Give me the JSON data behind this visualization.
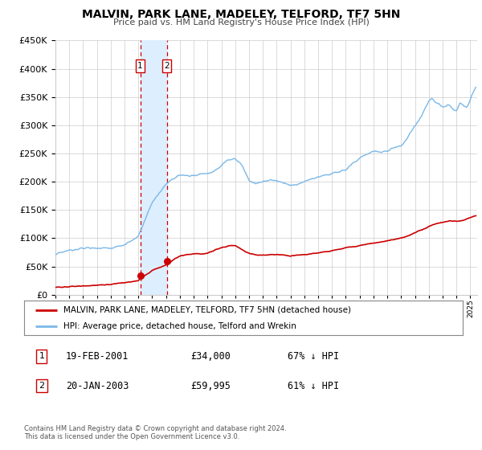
{
  "title": "MALVIN, PARK LANE, MADELEY, TELFORD, TF7 5HN",
  "subtitle": "Price paid vs. HM Land Registry's House Price Index (HPI)",
  "hpi_label": "HPI: Average price, detached house, Telford and Wrekin",
  "price_label": "MALVIN, PARK LANE, MADELEY, TELFORD, TF7 5HN (detached house)",
  "hpi_color": "#7ab8e8",
  "price_color": "#cc0000",
  "dot_color": "#cc0000",
  "marker1_date_num": 2001.13,
  "marker2_date_num": 2003.05,
  "marker1_price": 34000,
  "marker2_price": 59995,
  "ylim": [
    0,
    450000
  ],
  "xlim_min": 1995.0,
  "xlim_max": 2025.5,
  "footnote1": "Contains HM Land Registry data © Crown copyright and database right 2024.",
  "footnote2": "This data is licensed under the Open Government Licence v3.0.",
  "shade_color": "#ddeeff",
  "grid_color": "#cccccc",
  "bg_color": "#ffffff",
  "hpi_anchors_x": [
    1995,
    1996,
    1997,
    1998,
    1999,
    2000,
    2001,
    2001.5,
    2002,
    2002.5,
    2003,
    2003.5,
    2004,
    2005,
    2006,
    2007,
    2007.5,
    2008,
    2008.5,
    2009,
    2009.5,
    2010,
    2010.5,
    2011,
    2011.5,
    2012,
    2012.5,
    2013,
    2013.5,
    2014,
    2014.5,
    2015,
    2015.5,
    2016,
    2016.5,
    2017,
    2017.5,
    2018,
    2018.5,
    2019,
    2019.5,
    2020,
    2020.5,
    2021,
    2021.5,
    2022,
    2022.25,
    2022.5,
    2023,
    2023.5,
    2024,
    2024.25,
    2024.75,
    2025.4
  ],
  "hpi_anchors_y": [
    70000,
    72000,
    75000,
    78000,
    82000,
    90000,
    100000,
    130000,
    155000,
    170000,
    185000,
    195000,
    200000,
    200000,
    205000,
    222000,
    230000,
    232000,
    220000,
    195000,
    190000,
    195000,
    198000,
    200000,
    197000,
    193000,
    192000,
    196000,
    200000,
    205000,
    210000,
    213000,
    218000,
    222000,
    235000,
    245000,
    252000,
    258000,
    260000,
    263000,
    268000,
    272000,
    285000,
    305000,
    325000,
    350000,
    355000,
    348000,
    340000,
    345000,
    335000,
    348000,
    340000,
    375000
  ],
  "price_anchors_x": [
    1995,
    1996,
    1997,
    1998,
    1999,
    2000,
    2001.0,
    2001.13,
    2002,
    2003.05,
    2003.5,
    2004,
    2005,
    2006,
    2007,
    2007.5,
    2008,
    2008.5,
    2009,
    2009.5,
    2010,
    2011,
    2012,
    2013,
    2014,
    2015,
    2016,
    2017,
    2018,
    2019,
    2020,
    2021,
    2022,
    2022.5,
    2023,
    2023.5,
    2024,
    2024.5,
    2025.4
  ],
  "price_anchors_y": [
    13000,
    15000,
    17000,
    19000,
    21000,
    25000,
    30000,
    34000,
    50000,
    59995,
    68000,
    75000,
    80000,
    82000,
    92000,
    95000,
    95000,
    88000,
    82000,
    80000,
    80000,
    81000,
    79000,
    82000,
    85000,
    88000,
    92000,
    98000,
    103000,
    108000,
    113000,
    122000,
    132000,
    136000,
    138000,
    140000,
    138000,
    140000,
    148000
  ]
}
